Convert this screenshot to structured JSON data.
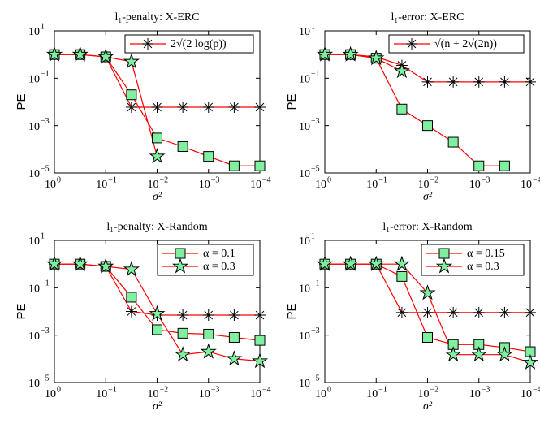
{
  "chart_data": [
    {
      "type": "line",
      "title": "l₁-penalty: X-ERC",
      "xlabel": "σ²",
      "ylabel": "PE",
      "xscale": "log",
      "yscale": "log",
      "legend": "upper right",
      "x": [
        1,
        0.316,
        0.1,
        0.0316,
        0.01,
        0.00316,
        0.001,
        0.000316,
        0.0001
      ],
      "xlim": [
        1,
        0.0001
      ],
      "ylim": [
        1e-05,
        10
      ],
      "xticks": [
        {
          "value": 1,
          "label": "10",
          "exponent": "0"
        },
        {
          "value": 0.1,
          "label": "10",
          "exponent": "−1"
        },
        {
          "value": 0.01,
          "label": "10",
          "exponent": "−2"
        },
        {
          "value": 0.001,
          "label": "10",
          "exponent": "−3"
        },
        {
          "value": 0.0001,
          "label": "10",
          "exponent": "−4"
        }
      ],
      "yticks": [
        {
          "value": 10,
          "label": "10",
          "exponent": "1"
        },
        {
          "value": 0.1,
          "label": "10",
          "exponent": "−1"
        },
        {
          "value": 0.001,
          "label": "10",
          "exponent": "−3"
        },
        {
          "value": 1e-05,
          "label": "10",
          "exponent": "−5"
        }
      ],
      "series": [
        {
          "name": "2√(2 log(p))",
          "color": "#ff0000",
          "marker": "asterisk",
          "marker_color": "#000000",
          "values": [
            1,
            1,
            0.8,
            0.006,
            0.006,
            0.006,
            0.006,
            0.006,
            0.006
          ]
        },
        {
          "color": "#ff0000",
          "marker": "square",
          "marker_color": "#80f0a0",
          "values": [
            1,
            1,
            0.8,
            0.02,
            0.0003,
            0.00013,
            5e-05,
            2e-05,
            2e-05
          ]
        },
        {
          "color": "#ff0000",
          "marker": "star",
          "marker_color": "#80f0a0",
          "values": [
            1,
            1,
            0.8,
            0.5,
            5e-05,
            null,
            null,
            null,
            null
          ]
        }
      ]
    },
    {
      "type": "line",
      "title": "l₁-error: X-ERC",
      "xlabel": "σ²",
      "ylabel": "PE",
      "xscale": "log",
      "yscale": "log",
      "legend": "upper right",
      "x": [
        1,
        0.316,
        0.1,
        0.0316,
        0.01,
        0.00316,
        0.001,
        0.000316,
        0.0001
      ],
      "xlim": [
        1,
        0.0001
      ],
      "ylim": [
        1e-05,
        10
      ],
      "xticks": [
        {
          "value": 1,
          "label": "10",
          "exponent": "0"
        },
        {
          "value": 0.1,
          "label": "10",
          "exponent": "−1"
        },
        {
          "value": 0.01,
          "label": "10",
          "exponent": "−2"
        },
        {
          "value": 0.001,
          "label": "10",
          "exponent": "−3"
        },
        {
          "value": 0.0001,
          "label": "10",
          "exponent": "−4"
        }
      ],
      "yticks": [
        {
          "value": 10,
          "label": "10",
          "exponent": "1"
        },
        {
          "value": 0.1,
          "label": "10",
          "exponent": "−1"
        },
        {
          "value": 0.001,
          "label": "10",
          "exponent": "−3"
        },
        {
          "value": 1e-05,
          "label": "10",
          "exponent": "−5"
        }
      ],
      "series": [
        {
          "name": "√(n + 2√(2n))",
          "color": "#ff0000",
          "marker": "asterisk",
          "marker_color": "#000000",
          "values": [
            1,
            1,
            0.8,
            0.35,
            0.07,
            0.07,
            0.07,
            0.07,
            0.07
          ]
        },
        {
          "color": "#ff0000",
          "marker": "square",
          "marker_color": "#80f0a0",
          "values": [
            1,
            1,
            0.7,
            0.005,
            0.001,
            0.0002,
            2e-05,
            2e-05,
            null
          ]
        },
        {
          "color": "#ff0000",
          "marker": "star",
          "marker_color": "#80f0a0",
          "values": [
            1,
            1,
            0.7,
            0.2,
            null,
            null,
            null,
            null,
            null
          ]
        }
      ]
    },
    {
      "type": "line",
      "title": "l₁-penalty: X-Random",
      "xlabel": "σ²",
      "ylabel": "PE",
      "xscale": "log",
      "yscale": "log",
      "legend": "upper right",
      "x": [
        1,
        0.316,
        0.1,
        0.0316,
        0.01,
        0.00316,
        0.001,
        0.000316,
        0.0001
      ],
      "xlim": [
        1,
        0.0001
      ],
      "ylim": [
        1e-05,
        10
      ],
      "xticks": [
        {
          "value": 1,
          "label": "10",
          "exponent": "0"
        },
        {
          "value": 0.1,
          "label": "10",
          "exponent": "−1"
        },
        {
          "value": 0.01,
          "label": "10",
          "exponent": "−2"
        },
        {
          "value": 0.001,
          "label": "10",
          "exponent": "−3"
        },
        {
          "value": 0.0001,
          "label": "10",
          "exponent": "−4"
        }
      ],
      "yticks": [
        {
          "value": 10,
          "label": "10",
          "exponent": "1"
        },
        {
          "value": 0.1,
          "label": "10",
          "exponent": "−1"
        },
        {
          "value": 0.001,
          "label": "10",
          "exponent": "−3"
        },
        {
          "value": 1e-05,
          "label": "10",
          "exponent": "−5"
        }
      ],
      "series": [
        {
          "color": "#ff0000",
          "marker": "asterisk",
          "marker_color": "#000000",
          "values": [
            1,
            1,
            0.8,
            0.01,
            0.007,
            0.007,
            0.007,
            0.007,
            0.007
          ]
        },
        {
          "name": "α = 0.1",
          "color": "#ff0000",
          "marker": "square",
          "marker_color": "#80f0a0",
          "values": [
            1,
            1,
            0.8,
            0.04,
            0.0017,
            0.0012,
            0.0011,
            0.0008,
            0.0006
          ]
        },
        {
          "name": "α = 0.3",
          "color": "#ff0000",
          "marker": "star",
          "marker_color": "#80f0a0",
          "values": [
            1,
            1,
            0.8,
            0.6,
            0.008,
            0.00015,
            0.0002,
            0.0001,
            8e-05
          ]
        }
      ]
    },
    {
      "type": "line",
      "title": "l₁-error: X-Random",
      "xlabel": "σ²",
      "ylabel": "PE",
      "xscale": "log",
      "yscale": "log",
      "legend": "upper right",
      "x": [
        1,
        0.316,
        0.1,
        0.0316,
        0.01,
        0.00316,
        0.001,
        0.000316,
        0.0001
      ],
      "xlim": [
        1,
        0.0001
      ],
      "ylim": [
        1e-05,
        10
      ],
      "xticks": [
        {
          "value": 1,
          "label": "10",
          "exponent": "0"
        },
        {
          "value": 0.1,
          "label": "10",
          "exponent": "−1"
        },
        {
          "value": 0.01,
          "label": "10",
          "exponent": "−2"
        },
        {
          "value": 0.001,
          "label": "10",
          "exponent": "−3"
        },
        {
          "value": 0.0001,
          "label": "10",
          "exponent": "−4"
        }
      ],
      "yticks": [
        {
          "value": 10,
          "label": "10",
          "exponent": "1"
        },
        {
          "value": 0.1,
          "label": "10",
          "exponent": "−1"
        },
        {
          "value": 0.001,
          "label": "10",
          "exponent": "−3"
        },
        {
          "value": 1e-05,
          "label": "10",
          "exponent": "−5"
        }
      ],
      "series": [
        {
          "color": "#ff0000",
          "marker": "asterisk",
          "marker_color": "#000000",
          "values": [
            1,
            1,
            1,
            0.009,
            0.009,
            0.009,
            0.009,
            0.009,
            0.009
          ]
        },
        {
          "name": "α = 0.15",
          "color": "#ff0000",
          "marker": "square",
          "marker_color": "#80f0a0",
          "values": [
            1,
            1,
            1,
            0.3,
            0.0008,
            0.0004,
            0.0004,
            0.0003,
            0.0002
          ]
        },
        {
          "name": "α = 0.3",
          "color": "#ff0000",
          "marker": "star",
          "marker_color": "#80f0a0",
          "values": [
            1,
            1,
            1,
            1,
            0.06,
            0.00015,
            0.00015,
            0.00015,
            7e-05
          ]
        }
      ]
    }
  ]
}
